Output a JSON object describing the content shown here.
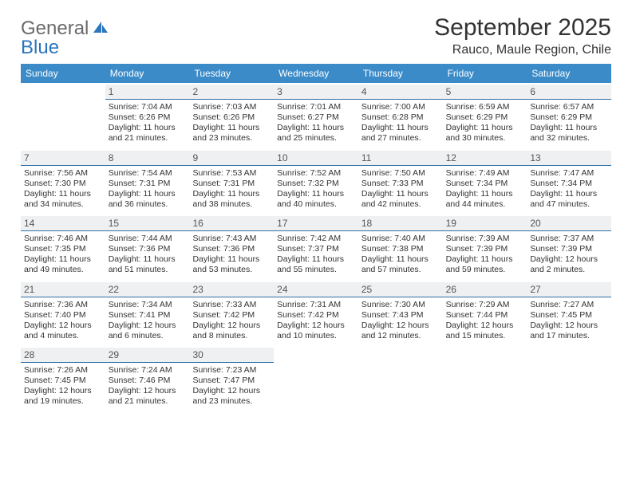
{
  "logo": {
    "word1": "General",
    "word2": "Blue"
  },
  "header": {
    "title": "September 2025",
    "location": "Rauco, Maule Region, Chile"
  },
  "style": {
    "header_bg": "#3b8bc9",
    "header_fg": "#ffffff",
    "daynum_bg": "#eef0f1",
    "daynum_border": "#2f6fa8",
    "text_color": "#333333",
    "logo_gray": "#6a6a6a",
    "logo_blue": "#2a75bb",
    "title_fontsize": 30,
    "location_fontsize": 16,
    "dow_fontsize": 12,
    "cell_fontsize": 10.5
  },
  "dow": [
    "Sunday",
    "Monday",
    "Tuesday",
    "Wednesday",
    "Thursday",
    "Friday",
    "Saturday"
  ],
  "weeks": [
    [
      null,
      {
        "n": "1",
        "sr": "Sunrise: 7:04 AM",
        "ss": "Sunset: 6:26 PM",
        "dl": "Daylight: 11 hours and 21 minutes."
      },
      {
        "n": "2",
        "sr": "Sunrise: 7:03 AM",
        "ss": "Sunset: 6:26 PM",
        "dl": "Daylight: 11 hours and 23 minutes."
      },
      {
        "n": "3",
        "sr": "Sunrise: 7:01 AM",
        "ss": "Sunset: 6:27 PM",
        "dl": "Daylight: 11 hours and 25 minutes."
      },
      {
        "n": "4",
        "sr": "Sunrise: 7:00 AM",
        "ss": "Sunset: 6:28 PM",
        "dl": "Daylight: 11 hours and 27 minutes."
      },
      {
        "n": "5",
        "sr": "Sunrise: 6:59 AM",
        "ss": "Sunset: 6:29 PM",
        "dl": "Daylight: 11 hours and 30 minutes."
      },
      {
        "n": "6",
        "sr": "Sunrise: 6:57 AM",
        "ss": "Sunset: 6:29 PM",
        "dl": "Daylight: 11 hours and 32 minutes."
      }
    ],
    [
      {
        "n": "7",
        "sr": "Sunrise: 7:56 AM",
        "ss": "Sunset: 7:30 PM",
        "dl": "Daylight: 11 hours and 34 minutes."
      },
      {
        "n": "8",
        "sr": "Sunrise: 7:54 AM",
        "ss": "Sunset: 7:31 PM",
        "dl": "Daylight: 11 hours and 36 minutes."
      },
      {
        "n": "9",
        "sr": "Sunrise: 7:53 AM",
        "ss": "Sunset: 7:31 PM",
        "dl": "Daylight: 11 hours and 38 minutes."
      },
      {
        "n": "10",
        "sr": "Sunrise: 7:52 AM",
        "ss": "Sunset: 7:32 PM",
        "dl": "Daylight: 11 hours and 40 minutes."
      },
      {
        "n": "11",
        "sr": "Sunrise: 7:50 AM",
        "ss": "Sunset: 7:33 PM",
        "dl": "Daylight: 11 hours and 42 minutes."
      },
      {
        "n": "12",
        "sr": "Sunrise: 7:49 AM",
        "ss": "Sunset: 7:34 PM",
        "dl": "Daylight: 11 hours and 44 minutes."
      },
      {
        "n": "13",
        "sr": "Sunrise: 7:47 AM",
        "ss": "Sunset: 7:34 PM",
        "dl": "Daylight: 11 hours and 47 minutes."
      }
    ],
    [
      {
        "n": "14",
        "sr": "Sunrise: 7:46 AM",
        "ss": "Sunset: 7:35 PM",
        "dl": "Daylight: 11 hours and 49 minutes."
      },
      {
        "n": "15",
        "sr": "Sunrise: 7:44 AM",
        "ss": "Sunset: 7:36 PM",
        "dl": "Daylight: 11 hours and 51 minutes."
      },
      {
        "n": "16",
        "sr": "Sunrise: 7:43 AM",
        "ss": "Sunset: 7:36 PM",
        "dl": "Daylight: 11 hours and 53 minutes."
      },
      {
        "n": "17",
        "sr": "Sunrise: 7:42 AM",
        "ss": "Sunset: 7:37 PM",
        "dl": "Daylight: 11 hours and 55 minutes."
      },
      {
        "n": "18",
        "sr": "Sunrise: 7:40 AM",
        "ss": "Sunset: 7:38 PM",
        "dl": "Daylight: 11 hours and 57 minutes."
      },
      {
        "n": "19",
        "sr": "Sunrise: 7:39 AM",
        "ss": "Sunset: 7:39 PM",
        "dl": "Daylight: 11 hours and 59 minutes."
      },
      {
        "n": "20",
        "sr": "Sunrise: 7:37 AM",
        "ss": "Sunset: 7:39 PM",
        "dl": "Daylight: 12 hours and 2 minutes."
      }
    ],
    [
      {
        "n": "21",
        "sr": "Sunrise: 7:36 AM",
        "ss": "Sunset: 7:40 PM",
        "dl": "Daylight: 12 hours and 4 minutes."
      },
      {
        "n": "22",
        "sr": "Sunrise: 7:34 AM",
        "ss": "Sunset: 7:41 PM",
        "dl": "Daylight: 12 hours and 6 minutes."
      },
      {
        "n": "23",
        "sr": "Sunrise: 7:33 AM",
        "ss": "Sunset: 7:42 PM",
        "dl": "Daylight: 12 hours and 8 minutes."
      },
      {
        "n": "24",
        "sr": "Sunrise: 7:31 AM",
        "ss": "Sunset: 7:42 PM",
        "dl": "Daylight: 12 hours and 10 minutes."
      },
      {
        "n": "25",
        "sr": "Sunrise: 7:30 AM",
        "ss": "Sunset: 7:43 PM",
        "dl": "Daylight: 12 hours and 12 minutes."
      },
      {
        "n": "26",
        "sr": "Sunrise: 7:29 AM",
        "ss": "Sunset: 7:44 PM",
        "dl": "Daylight: 12 hours and 15 minutes."
      },
      {
        "n": "27",
        "sr": "Sunrise: 7:27 AM",
        "ss": "Sunset: 7:45 PM",
        "dl": "Daylight: 12 hours and 17 minutes."
      }
    ],
    [
      {
        "n": "28",
        "sr": "Sunrise: 7:26 AM",
        "ss": "Sunset: 7:45 PM",
        "dl": "Daylight: 12 hours and 19 minutes."
      },
      {
        "n": "29",
        "sr": "Sunrise: 7:24 AM",
        "ss": "Sunset: 7:46 PM",
        "dl": "Daylight: 12 hours and 21 minutes."
      },
      {
        "n": "30",
        "sr": "Sunrise: 7:23 AM",
        "ss": "Sunset: 7:47 PM",
        "dl": "Daylight: 12 hours and 23 minutes."
      },
      null,
      null,
      null,
      null
    ]
  ]
}
